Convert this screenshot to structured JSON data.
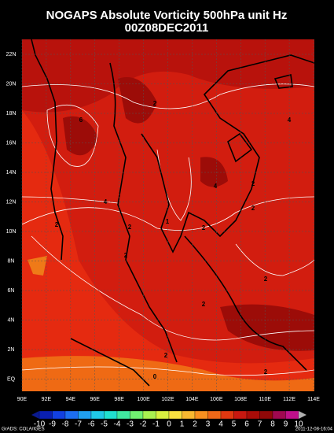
{
  "header": {
    "title": "NOGAPS Absolute Vorticity 500hPa unit Hz",
    "subtitle": "00Z08DEC2011"
  },
  "lat_labels": [
    "22N",
    "20N",
    "18N",
    "16N",
    "14N",
    "12N",
    "10N",
    "8N",
    "6N",
    "4N",
    "2N",
    "EQ"
  ],
  "lon_labels": [
    "90E",
    "92E",
    "94E",
    "96E",
    "98E",
    "100E",
    "102E",
    "104E",
    "106E",
    "108E",
    "110E",
    "112E",
    "114E"
  ],
  "contour_labels": [
    "2",
    "6",
    "4",
    "4",
    "2",
    "4",
    "2",
    "2",
    "2",
    "1",
    "2",
    "2",
    "2",
    "2",
    "2",
    "0",
    "2"
  ],
  "colorbar_labels": [
    "-10",
    "-9",
    "-8",
    "-7",
    "-6",
    "-5",
    "-4",
    "-3",
    "-2",
    "-1",
    "0",
    "1",
    "2",
    "3",
    "4",
    "5",
    "6",
    "7",
    "8",
    "9",
    "10"
  ],
  "footer": {
    "left": "GrADS: COLA/IGES",
    "right": "2011-12-08-16:04"
  }
}
